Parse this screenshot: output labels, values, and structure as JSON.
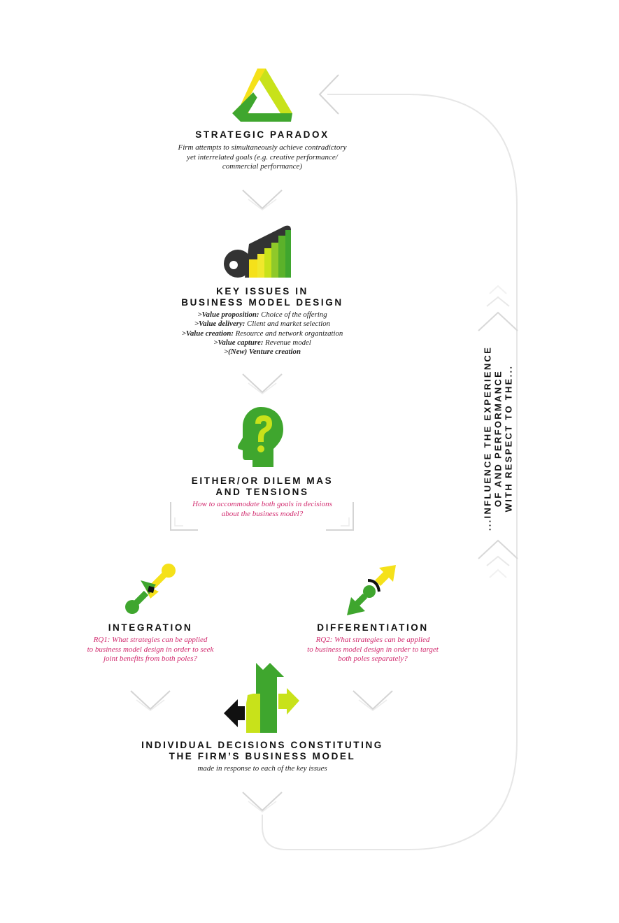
{
  "colors": {
    "yellow": "#f5e11a",
    "lime": "#c8e21a",
    "green": "#3fa62e",
    "dark": "#333333",
    "pink": "#d1296d",
    "line": "#e6e6e6"
  },
  "steps": {
    "paradox": {
      "icon": "penrose-triangle-icon",
      "title": "STRATEGIC PARADOX",
      "desc": [
        "Firm attempts to simultaneously achieve contradictory",
        "yet interrelated goals (e.g. creative performance/",
        "commercial performance)"
      ]
    },
    "key_issues": {
      "icon": "key-bars-icon",
      "title": [
        "KEY ISSUES IN",
        "BUSINESS MODEL DESIGN"
      ],
      "items": [
        {
          "label": ">Value proposition:",
          "text": " Choice of the offering"
        },
        {
          "label": ">Value delivery:",
          "text": " Client and market selection"
        },
        {
          "label": ">Value creation:",
          "text": " Resource and network organization"
        },
        {
          "label": ">Value capture:",
          "text": " Revenue model"
        },
        {
          "label": ">(New) Venture creation",
          "text": ""
        }
      ]
    },
    "dilemmas": {
      "icon": "question-head-icon",
      "title": [
        "EITHER/OR DILEM MAS",
        "AND TENSIONS"
      ],
      "desc": [
        "How to accommodate both goals in decisions",
        "about the business model?"
      ]
    },
    "integration": {
      "icon": "converging-arrows-icon",
      "title": "INTEGRATION",
      "desc": [
        "RQ1: What strategies can be applied",
        "to business model design in order to seek",
        "joint benefits from both poles?"
      ]
    },
    "differentiation": {
      "icon": "diverging-arrows-icon",
      "title": "DIFFERENTIATION",
      "desc": [
        "RQ2: What strategies can be applied",
        "to business model design in order to target",
        "both poles separately?"
      ]
    },
    "decisions": {
      "icon": "branching-arrows-icon",
      "title": [
        "INDIVIDUAL DECISIONS CONSTITUTING",
        "THE FIRM’S BUSINESS MODEL"
      ],
      "desc": "made in response to each of the key issues"
    }
  },
  "feedback": {
    "lines": [
      "...INFLUENCE THE EXPERIENCE",
      "OF AND PERFORMANCE",
      "WITH RESPECT TO THE..."
    ]
  }
}
